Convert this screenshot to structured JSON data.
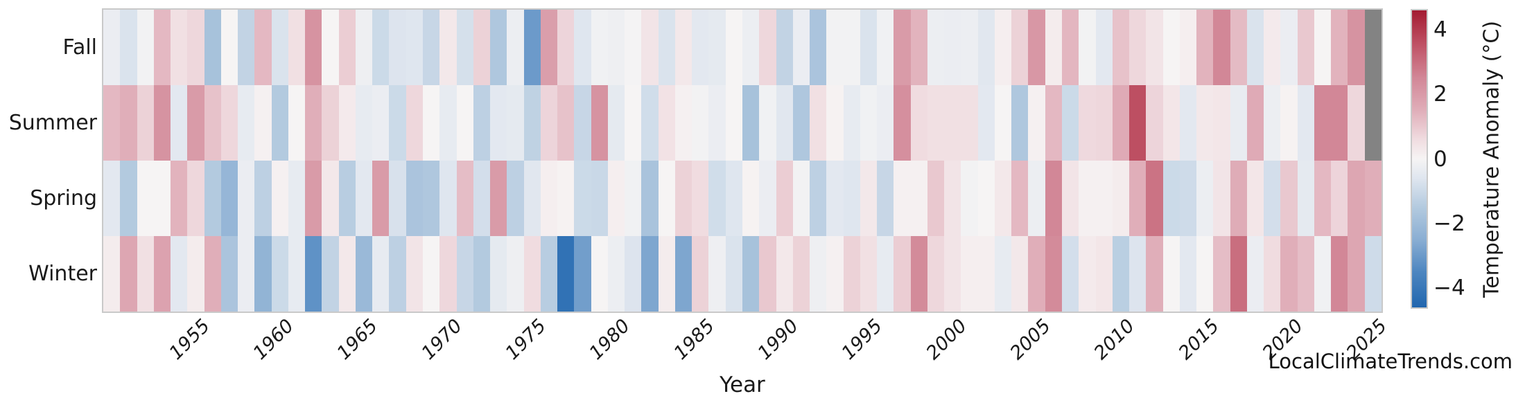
{
  "watermark": "LocalClimateTrends.com",
  "chart_data": {
    "type": "heatmap",
    "title": "",
    "xlabel": "Year",
    "ylabel": "",
    "rows": [
      "Fall",
      "Summer",
      "Spring",
      "Winter"
    ],
    "x_start": 1950,
    "x_end": 2025,
    "xticks": [
      1955,
      1960,
      1965,
      1970,
      1975,
      1980,
      1985,
      1990,
      1995,
      2000,
      2005,
      2010,
      2015,
      2020,
      2025
    ],
    "series": [
      {
        "name": "Fall",
        "values": [
          -0.3,
          -0.7,
          -0.1,
          1.3,
          0.5,
          0.7,
          -1.8,
          0.0,
          -1.2,
          1.3,
          -0.7,
          0.5,
          2.2,
          0.0,
          0.9,
          -0.2,
          -1.0,
          -0.65,
          -0.6,
          -1.1,
          0.3,
          -0.8,
          0.8,
          -1.6,
          -0.25,
          -3.0,
          1.9,
          0.75,
          -0.6,
          -0.15,
          -0.2,
          -0.05,
          0.4,
          -0.7,
          0.3,
          -0.5,
          -0.45,
          0.0,
          -0.25,
          0.7,
          -1.2,
          -0.3,
          -1.7,
          -0.1,
          -0.1,
          -0.7,
          -0.15,
          2.0,
          1.4,
          -0.25,
          -0.3,
          -0.25,
          -0.55,
          0.15,
          0.8,
          2.1,
          0.2,
          1.35,
          -0.1,
          -0.5,
          1.1,
          0.7,
          0.4,
          0.0,
          0.15,
          1.4,
          2.5,
          1.25,
          -0.7,
          0.25,
          -0.3,
          1.0,
          0.0,
          1.4,
          2.2,
          null
        ]
      },
      {
        "name": "Summer",
        "values": [
          1.3,
          1.5,
          0.8,
          2.2,
          -0.5,
          2.0,
          1.1,
          0.7,
          -0.4,
          0.1,
          -1.5,
          0.0,
          1.5,
          0.8,
          0.25,
          -0.4,
          -0.3,
          -1.0,
          0.7,
          0.0,
          -0.4,
          0.0,
          -1.3,
          -0.5,
          -0.45,
          -1.25,
          0.75,
          1.1,
          -1.1,
          2.2,
          -0.45,
          0.0,
          -0.9,
          0.45,
          0.1,
          -0.1,
          -0.3,
          0.0,
          -1.8,
          -0.15,
          -0.55,
          -1.6,
          0.5,
          0.05,
          -0.4,
          -0.15,
          -0.3,
          2.3,
          0.6,
          0.5,
          0.5,
          0.5,
          -0.5,
          0.0,
          -1.6,
          0.1,
          1.3,
          -1.0,
          0.65,
          0.7,
          1.6,
          3.6,
          0.75,
          0.35,
          -0.5,
          0.3,
          0.35,
          -0.35,
          1.6,
          -0.25,
          0.05,
          -0.5,
          2.5,
          2.5,
          0.7,
          null
        ]
      },
      {
        "name": "Spring",
        "values": [
          -0.5,
          -1.5,
          0.0,
          0.0,
          1.4,
          0.7,
          -1.5,
          -2.2,
          -0.3,
          -1.3,
          0.1,
          -0.4,
          2.0,
          0.3,
          -1.4,
          -0.5,
          2.0,
          -0.75,
          -1.7,
          -1.6,
          -0.6,
          1.2,
          -0.85,
          2.0,
          -1.3,
          -0.55,
          0.15,
          0.05,
          -1.0,
          -1.05,
          0.15,
          -0.15,
          -1.75,
          0.0,
          0.8,
          0.6,
          -0.9,
          -0.6,
          0.05,
          -0.3,
          0.9,
          -0.1,
          -1.3,
          -0.5,
          -0.6,
          0.3,
          -1.1,
          0.1,
          0.1,
          1.0,
          0.4,
          -0.1,
          0.0,
          0.3,
          1.3,
          -0.25,
          2.5,
          0.4,
          0.1,
          0.1,
          0.2,
          1.5,
          2.9,
          -1.0,
          -0.95,
          -0.25,
          0.4,
          1.55,
          0.35,
          -0.85,
          1.0,
          -0.45,
          1.3,
          0.75,
          1.7,
          1.5
        ]
      },
      {
        "name": "Winter",
        "values": [
          0.2,
          1.7,
          0.5,
          1.8,
          -0.5,
          0.2,
          1.5,
          -1.7,
          -0.3,
          -2.3,
          -1.0,
          -0.4,
          -3.2,
          -1.2,
          0.3,
          -2.1,
          -0.4,
          -1.3,
          0.4,
          0.0,
          0.7,
          -1.1,
          -1.5,
          -0.45,
          -0.2,
          0.6,
          -1.4,
          -4.2,
          -2.9,
          0.0,
          -0.25,
          -0.65,
          -2.7,
          0.2,
          -2.7,
          0.8,
          -0.2,
          -0.7,
          -1.8,
          1.0,
          0.3,
          0.8,
          -0.2,
          0.1,
          0.8,
          0.5,
          -0.4,
          0.9,
          2.4,
          0.7,
          0.4,
          0.15,
          0.15,
          -0.4,
          0.3,
          1.5,
          2.4,
          -0.85,
          0.25,
          0.35,
          -1.35,
          -0.65,
          1.5,
          0.0,
          -0.5,
          0.0,
          1.2,
          3.0,
          -0.3,
          0.6,
          1.5,
          1.2,
          -0.15,
          2.5,
          1.7,
          -0.95
        ]
      }
    ],
    "colorbar": {
      "label": "Temperature Anomaly (°C)",
      "ticks": [
        4,
        2,
        0,
        -2,
        -4
      ],
      "vmin": -4.6,
      "vmax": 4.6,
      "nan_color": "#838383",
      "stops": [
        [
          -4.6,
          "#2166ae"
        ],
        [
          -3.5,
          "#4d86c0"
        ],
        [
          -2.5,
          "#8aaed3"
        ],
        [
          -1.5,
          "#b3cadf"
        ],
        [
          -0.6,
          "#dfe6ef"
        ],
        [
          0,
          "#f6f4f4"
        ],
        [
          0.6,
          "#f0dce0"
        ],
        [
          1.5,
          "#e0aeb9"
        ],
        [
          2.5,
          "#d28797"
        ],
        [
          3.5,
          "#c05467"
        ],
        [
          4.6,
          "#a31b31"
        ]
      ]
    }
  }
}
